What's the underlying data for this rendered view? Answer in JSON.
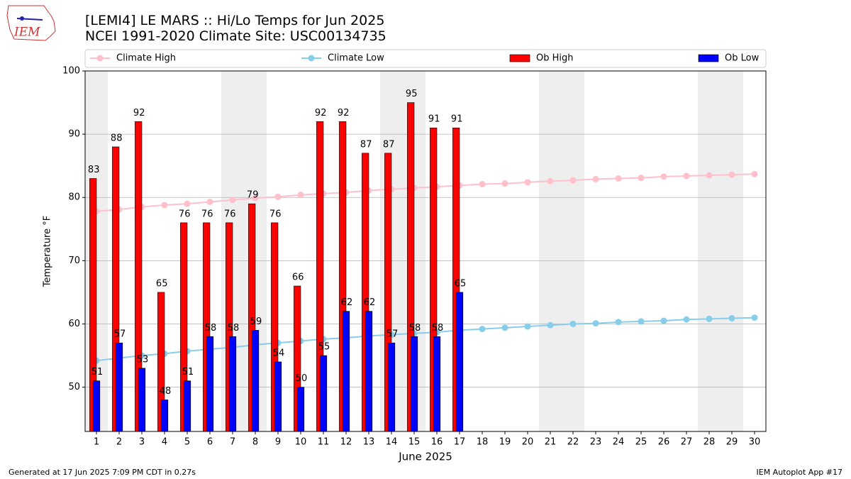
{
  "chart_data": {
    "type": "bar",
    "title": "[LEMI4] LE MARS :: Hi/Lo Temps for Jun 2025",
    "subtitle": "NCEI 1991-2020 Climate Site: USC00134735",
    "x_label": "June 2025",
    "y_label": "Temperature °F",
    "footer_left": "Generated at 17 Jun 2025 7:09 PM CDT in 0.27s",
    "footer_right": "IEM Autoplot App #17",
    "logo_text": "IEM",
    "x": [
      1,
      2,
      3,
      4,
      5,
      6,
      7,
      8,
      9,
      10,
      11,
      12,
      13,
      14,
      15,
      16,
      17,
      18,
      19,
      20,
      21,
      22,
      23,
      24,
      25,
      26,
      27,
      28,
      29,
      30
    ],
    "xlim": [
      0.5,
      30.5
    ],
    "xticks": [
      1,
      2,
      3,
      4,
      5,
      6,
      7,
      8,
      9,
      10,
      11,
      12,
      13,
      14,
      15,
      16,
      17,
      18,
      19,
      20,
      21,
      22,
      23,
      24,
      25,
      26,
      27,
      28,
      29,
      30
    ],
    "ylim": [
      43,
      100
    ],
    "yticks": [
      50,
      60,
      70,
      80,
      90,
      100
    ],
    "grid": true,
    "shaded_days": [
      1,
      7,
      8,
      14,
      15,
      21,
      22,
      28,
      29
    ],
    "series": [
      {
        "name": "Climate High",
        "kind": "line",
        "color": "#ffc0cb",
        "values": [
          77.8,
          78.1,
          78.5,
          78.8,
          79.0,
          79.3,
          79.6,
          79.9,
          80.1,
          80.4,
          80.6,
          80.8,
          81.1,
          81.3,
          81.5,
          81.7,
          81.9,
          82.1,
          82.2,
          82.4,
          82.6,
          82.7,
          82.9,
          83.0,
          83.1,
          83.3,
          83.4,
          83.5,
          83.6,
          83.7
        ]
      },
      {
        "name": "Climate Low",
        "kind": "line",
        "color": "#87ceeb",
        "values": [
          54.2,
          54.6,
          55.0,
          55.3,
          55.7,
          56.0,
          56.3,
          56.7,
          57.0,
          57.3,
          57.6,
          57.8,
          58.1,
          58.3,
          58.5,
          58.7,
          59.0,
          59.2,
          59.4,
          59.6,
          59.8,
          60.0,
          60.1,
          60.3,
          60.4,
          60.5,
          60.7,
          60.8,
          60.9,
          61.0
        ]
      },
      {
        "name": "Ob High",
        "kind": "bar",
        "color": "#ff0000",
        "values": [
          83,
          88,
          92,
          65,
          76,
          76,
          76,
          79,
          76,
          66,
          92,
          92,
          87,
          87,
          95,
          91,
          91,
          null,
          null,
          null,
          null,
          null,
          null,
          null,
          null,
          null,
          null,
          null,
          null,
          null
        ]
      },
      {
        "name": "Ob Low",
        "kind": "bar",
        "color": "#0000ff",
        "values": [
          51,
          57,
          53,
          48,
          51,
          58,
          58,
          59,
          54,
          50,
          55,
          62,
          62,
          57,
          58,
          58,
          65,
          null,
          null,
          null,
          null,
          null,
          null,
          null,
          null,
          null,
          null,
          null,
          null,
          null
        ]
      }
    ]
  }
}
